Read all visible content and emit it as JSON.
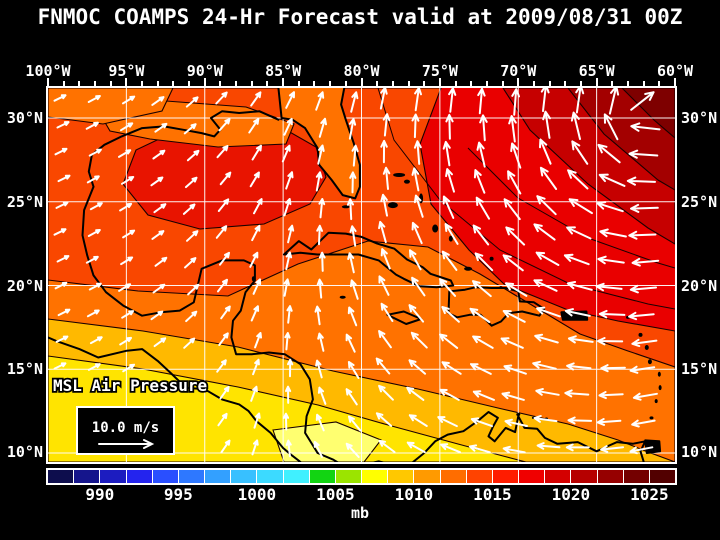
{
  "title": "FNMOC COAMPS 24-Hr Forecast valid at 2009/08/31 00Z",
  "axes": {
    "top": [
      "100°W",
      "95°W",
      "90°W",
      "85°W",
      "80°W",
      "75°W",
      "70°W",
      "65°W",
      "60°W"
    ],
    "left": [
      "30°N",
      "25°N",
      "20°N",
      "15°N",
      "10°N"
    ],
    "right": [
      "30°N",
      "25°N",
      "20°N",
      "15°N",
      "10°N"
    ]
  },
  "overlay": {
    "field_label": "MSL Air Pressure",
    "wind_reference_label": "10.0 m/s"
  },
  "colorbar": {
    "unit": "mb",
    "tick_labels": [
      "990",
      "995",
      "1000",
      "1005",
      "1010",
      "1015",
      "1020",
      "1025"
    ],
    "tick_boundary_indices": [
      2,
      5,
      8,
      11,
      14,
      17,
      20,
      23
    ],
    "segment_colors": [
      "#0d0d4d",
      "#15158c",
      "#1c1cc0",
      "#2424ee",
      "#2a4fff",
      "#2e78ff",
      "#33a0ff",
      "#38c0ff",
      "#3cdaff",
      "#40f0ff",
      "#12d412",
      "#9be400",
      "#ffff00",
      "#ffc800",
      "#ff9a00",
      "#ff6d00",
      "#ff4300",
      "#ff1c00",
      "#f00000",
      "#d40000",
      "#b60000",
      "#960000",
      "#740000",
      "#520000"
    ]
  },
  "palette": {
    "red_bright": "#e90000",
    "red_dark1": "#c60000",
    "red_dark2": "#a30000",
    "red_dark3": "#7e0000",
    "orange_red": "#f94700",
    "gulf_red": "#e81400",
    "orange": "#ff7200",
    "gold": "#ffb900",
    "yellow": "#ffe400",
    "yellow_pale": "#ffff70",
    "coastline": "#000000",
    "contour": "#1a0000",
    "grid": "#ffffff",
    "arrow": "#ffffff",
    "text": "#ffffff"
  },
  "chart_data": {
    "type": "heatmap",
    "title": "FNMOC COAMPS 24-Hr Forecast valid at 2009/08/31 00Z",
    "field": "MSL Air Pressure",
    "units": "mb",
    "colorbar_ticks": [
      990,
      995,
      1000,
      1005,
      1010,
      1015,
      1020,
      1025
    ],
    "lon_ticks_deg_west": [
      100,
      95,
      90,
      85,
      80,
      75,
      70,
      65,
      60
    ],
    "lat_ticks_deg_north": [
      30,
      25,
      20,
      15,
      10
    ],
    "wind_reference_ms": 10.0,
    "pattern_summary": "High pressure (dark red, ~1020-1025 mb) in the northeast Atlantic corner; pressure decreases southwestward through red (~1015 mb) and orange (~1012 mb) to yellow (~1008-1010 mb) over Central America; localized ~1015 mb red cell over the central Gulf of Mexico; white wind vectors show clockwise flow around the high with strong easterly trade winds across the Caribbean."
  }
}
